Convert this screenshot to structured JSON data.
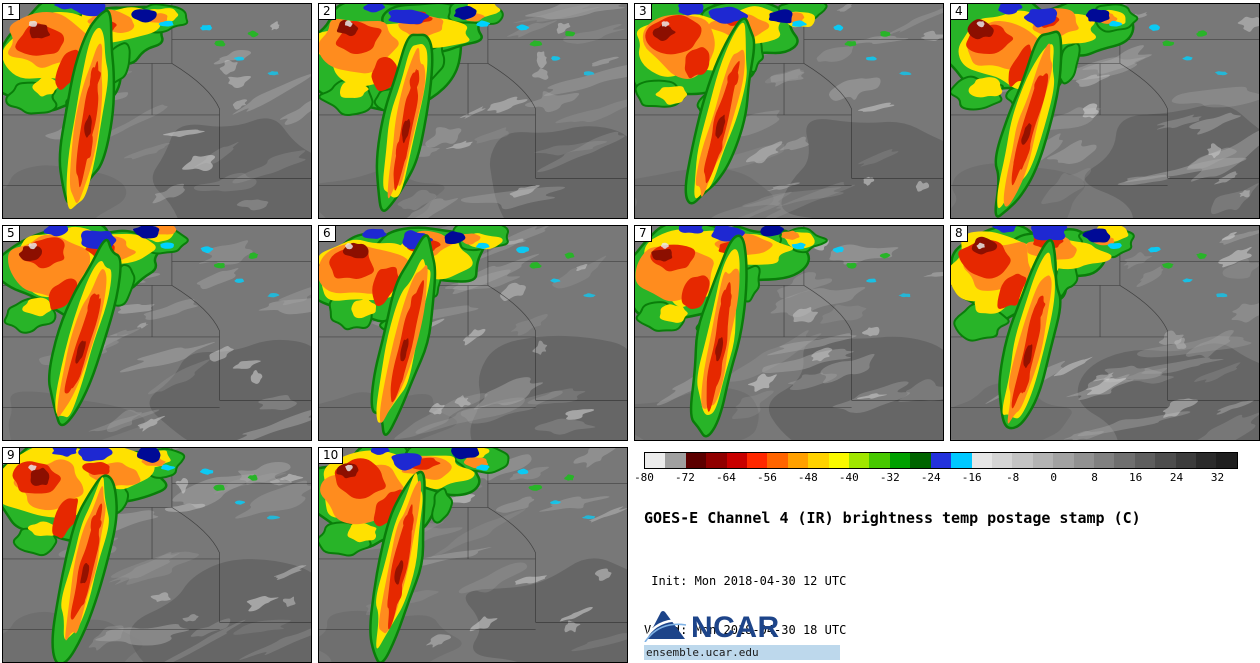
{
  "figure": {
    "title": "GOES-E Channel 4 (IR) brightness temp postage stamp (C)",
    "init_line": " Init: Mon 2018-04-30 12 UTC",
    "valid_line": "Valid: Mon 2018-04-30 18 UTC",
    "credit": {
      "org": "NCAR",
      "url": "ensemble.ucar.edu"
    }
  },
  "panels": [
    {
      "label": "1"
    },
    {
      "label": "2"
    },
    {
      "label": "3"
    },
    {
      "label": "4"
    },
    {
      "label": "5"
    },
    {
      "label": "6"
    },
    {
      "label": "7"
    },
    {
      "label": "8"
    },
    {
      "label": "9"
    },
    {
      "label": "10"
    }
  ],
  "colorbar": {
    "ticks": [
      "-80",
      "-72",
      "-64",
      "-56",
      "-48",
      "-40",
      "-32",
      "-24",
      "-16",
      "-8",
      "0",
      "8",
      "16",
      "24",
      "32"
    ],
    "segments": [
      "#ececec",
      "#a0a0a0",
      "#5c0000",
      "#900000",
      "#c80000",
      "#ff2800",
      "#ff6400",
      "#ffa000",
      "#ffd200",
      "#fafa00",
      "#a0e600",
      "#46c800",
      "#00a000",
      "#006400",
      "#2332dc",
      "#00c8ff",
      "#e6e6e6",
      "#d5d5d5",
      "#c4c4c4",
      "#b3b3b3",
      "#a2a2a2",
      "#919191",
      "#808080",
      "#6f6f6f",
      "#5e5e5e",
      "#4d4d4d",
      "#3c3c3c",
      "#2b2b2b",
      "#1f1f1f"
    ]
  },
  "ir_palette": {
    "ground": "#787878",
    "ground_dark": "#5e5e5e",
    "streak_light": "#a9a9a9",
    "streak_bright": "#d2d2d2",
    "green": "#28b428",
    "green_edge": "#0a7d0a",
    "yellow": "#ffe100",
    "orange": "#ff8c1e",
    "red": "#e62800",
    "dark_red": "#8c0f00",
    "blue": "#1e28d2",
    "dark_blue": "#000a96",
    "cyan": "#00d2ff",
    "white_spot": "#e6e6e6",
    "border_line": "#141414"
  }
}
